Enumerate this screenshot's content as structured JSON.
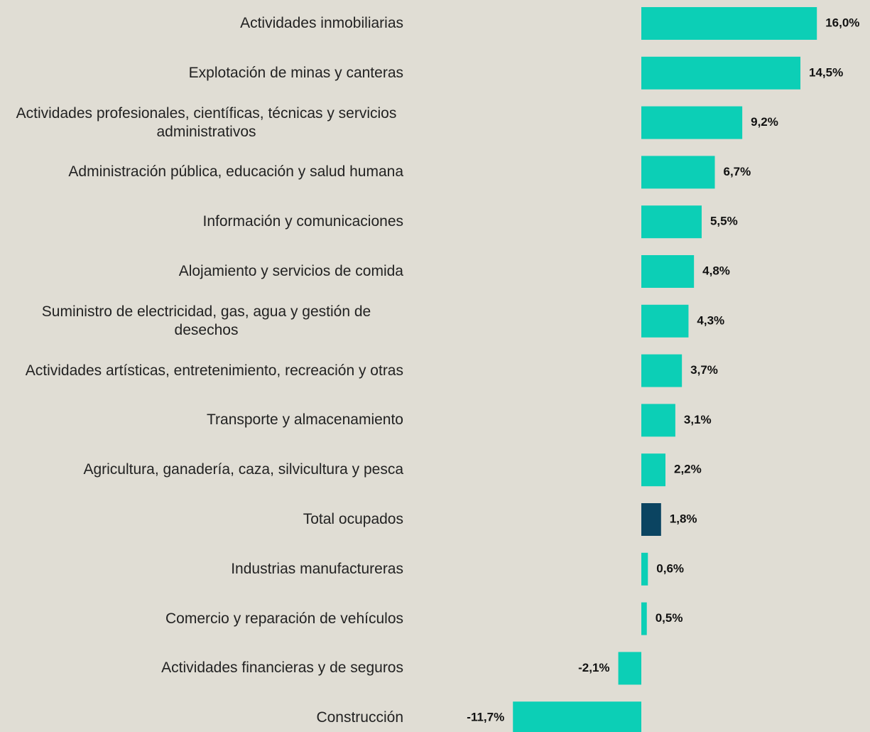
{
  "chart_data": {
    "type": "bar",
    "orientation": "horizontal",
    "categories": [
      "Actividades inmobiliarias",
      "Explotación de minas y canteras",
      "Actividades profesionales, científicas, técnicas y servicios administrativos",
      "Administración pública, educación y salud humana",
      "Información y comunicaciones",
      "Alojamiento y servicios de comida",
      "Suministro de electricidad, gas, agua y gestión de desechos",
      "Actividades artísticas, entretenimiento, recreación y otras",
      "Transporte y almacenamiento",
      "Agricultura, ganadería, caza, silvicultura y pesca",
      "Total ocupados",
      "Industrias manufactureras",
      "Comercio y reparación de vehículos",
      "Actividades financieras y de seguros",
      "Construcción"
    ],
    "values": [
      16.0,
      14.5,
      9.2,
      6.7,
      5.5,
      4.8,
      4.3,
      3.7,
      3.1,
      2.2,
      1.8,
      0.6,
      0.5,
      -2.1,
      -11.7
    ],
    "value_labels": [
      "16,0%",
      "14,5%",
      "9,2%",
      "6,7%",
      "5,5%",
      "4,8%",
      "4,3%",
      "3,7%",
      "3,1%",
      "2,2%",
      "1,8%",
      "0,6%",
      "0,5%",
      "-2,1%",
      "-11,7%"
    ],
    "colors": [
      "#0ccfb6",
      "#0ccfb6",
      "#0ccfb6",
      "#0ccfb6",
      "#0ccfb6",
      "#0ccfb6",
      "#0ccfb6",
      "#0ccfb6",
      "#0ccfb6",
      "#0ccfb6",
      "#0b4461",
      "#0ccfb6",
      "#0ccfb6",
      "#0ccfb6",
      "#0ccfb6"
    ],
    "xlim": [
      -11.7,
      16.0
    ]
  }
}
